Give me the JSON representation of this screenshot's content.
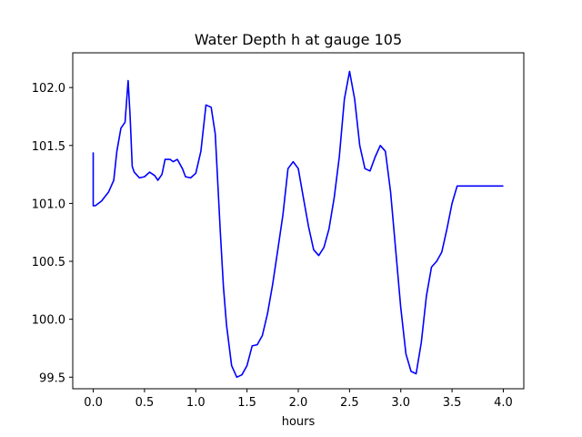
{
  "chart_data": {
    "type": "line",
    "title": "Water Depth h at gauge 105",
    "xlabel": "hours",
    "ylabel": "",
    "xlim": [
      -0.2,
      4.2
    ],
    "ylim": [
      99.4,
      102.3
    ],
    "xticks": [
      0.0,
      0.5,
      1.0,
      1.5,
      2.0,
      2.5,
      3.0,
      3.5,
      4.0
    ],
    "xtick_labels": [
      "0.0",
      "0.5",
      "1.0",
      "1.5",
      "2.0",
      "2.5",
      "3.0",
      "3.5",
      "4.0"
    ],
    "yticks": [
      99.5,
      100.0,
      100.5,
      101.0,
      101.5,
      102.0
    ],
    "ytick_labels": [
      "99.5",
      "100.0",
      "100.5",
      "101.0",
      "101.5",
      "102.0"
    ],
    "grid": false,
    "series": [
      {
        "color": "#0000ff",
        "x": [
          0.0,
          0.0,
          0.02,
          0.08,
          0.15,
          0.2,
          0.23,
          0.27,
          0.31,
          0.34,
          0.36,
          0.38,
          0.4,
          0.42,
          0.45,
          0.5,
          0.55,
          0.6,
          0.63,
          0.67,
          0.7,
          0.75,
          0.78,
          0.82,
          0.87,
          0.9,
          0.95,
          1.0,
          1.05,
          1.1,
          1.15,
          1.19,
          1.24,
          1.27,
          1.3,
          1.35,
          1.4,
          1.45,
          1.5,
          1.55,
          1.6,
          1.65,
          1.7,
          1.75,
          1.8,
          1.85,
          1.9,
          1.95,
          2.0,
          2.05,
          2.1,
          2.15,
          2.2,
          2.25,
          2.3,
          2.35,
          2.4,
          2.45,
          2.5,
          2.55,
          2.6,
          2.65,
          2.7,
          2.75,
          2.8,
          2.85,
          2.9,
          2.95,
          3.0,
          3.05,
          3.1,
          3.15,
          3.2,
          3.25,
          3.3,
          3.35,
          3.4,
          3.45,
          3.5,
          3.55,
          3.6,
          3.65,
          3.7,
          3.75,
          3.8,
          3.85,
          3.9,
          3.95,
          4.0
        ],
        "y": [
          101.44,
          100.98,
          100.98,
          101.02,
          101.1,
          101.2,
          101.45,
          101.65,
          101.7,
          102.06,
          101.75,
          101.32,
          101.27,
          101.25,
          101.22,
          101.23,
          101.27,
          101.24,
          101.2,
          101.25,
          101.38,
          101.38,
          101.36,
          101.38,
          101.3,
          101.23,
          101.22,
          101.26,
          101.45,
          101.85,
          101.83,
          101.6,
          100.75,
          100.28,
          99.95,
          99.6,
          99.5,
          99.52,
          99.6,
          99.77,
          99.78,
          99.86,
          100.05,
          100.3,
          100.6,
          100.9,
          101.3,
          101.36,
          101.3,
          101.05,
          100.8,
          100.6,
          100.55,
          100.62,
          100.78,
          101.05,
          101.4,
          101.9,
          102.14,
          101.9,
          101.5,
          101.3,
          101.28,
          101.4,
          101.5,
          101.45,
          101.1,
          100.6,
          100.1,
          99.7,
          99.55,
          99.53,
          99.8,
          100.2,
          100.45,
          100.5,
          100.58,
          100.78,
          101.0,
          101.15,
          101.15,
          101.15,
          101.15,
          101.15,
          101.15,
          101.15,
          101.15,
          101.15,
          101.15
        ]
      }
    ]
  }
}
